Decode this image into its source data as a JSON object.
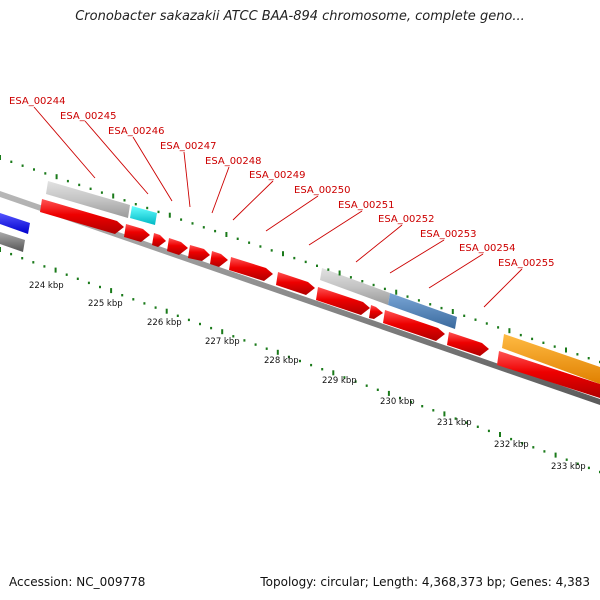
{
  "title": "Cronobacter sakazakii ATCC BAA-894 chromosome, complete geno...",
  "footer": {
    "accession": "Accession: NC_009778",
    "summary": "Topology: circular; Length: 4,368,373 bp; Genes: 4,383"
  },
  "colors": {
    "cds": "#ee0000",
    "gene": "#c4c4c4",
    "backbone": "#888888",
    "ruler": "#1a7a1a",
    "label": "#cc0000",
    "cyan_feature": "#00e5ee",
    "blue_feature": "#4a7fb5",
    "orange_feature": "#ff9900",
    "dark_blue_feature": "#1a1aee"
  },
  "gene_labels": [
    "ESA_00244",
    "ESA_00245",
    "ESA_00246",
    "ESA_00247",
    "ESA_00248",
    "ESA_00249",
    "ESA_00250",
    "ESA_00251",
    "ESA_00252",
    "ESA_00253",
    "ESA_00254",
    "ESA_00255"
  ],
  "ruler_labels": [
    "224 kbp",
    "225 kbp",
    "226 kbp",
    "227 kbp",
    "228 kbp",
    "229 kbp",
    "230 kbp",
    "231 kbp",
    "232 kbp",
    "233 kbp"
  ]
}
